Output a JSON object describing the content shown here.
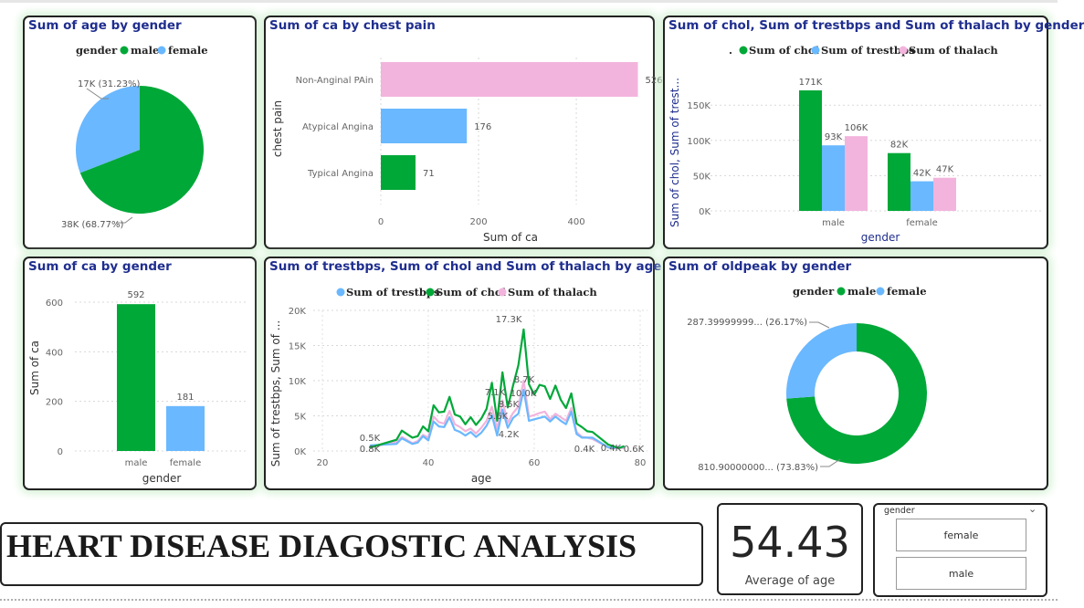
{
  "dashboard_title": "HEART DISEASE DIAGOSTIC ANALYSIS",
  "kpi": {
    "value": "54.43",
    "label": "Average of age"
  },
  "slicer": {
    "title": "gender",
    "options": [
      "female",
      "male"
    ]
  },
  "colors": {
    "male": "#00a838",
    "female": "#6ab8ff",
    "chol": "#00a838",
    "trestbps": "#6ab8ff",
    "thalach": "#f2b4dc",
    "title": "#1f2e8f"
  },
  "chart_data": [
    {
      "id": "age_by_gender",
      "type": "pie",
      "title": "Sum of age by gender",
      "legend_title": "gender",
      "labels": [
        "male",
        "female"
      ],
      "values": [
        38,
        17
      ],
      "data_labels": [
        "38K (68.77%)",
        "17K (31.23%)"
      ]
    },
    {
      "id": "ca_by_chest_pain",
      "type": "bar",
      "orientation": "horizontal",
      "title": "Sum of ca by chest pain",
      "categories": [
        "Non-Anginal PAin",
        "Atypical Angina",
        "Typical Angina"
      ],
      "values": [
        526,
        176,
        71
      ],
      "xlabel": "Sum of ca",
      "ylabel": "chest pain",
      "xlim": [
        0,
        540
      ],
      "xticks": [
        0,
        200,
        400
      ]
    },
    {
      "id": "chol_trestbps_thalach_by_gender",
      "type": "bar",
      "title": "Sum of chol, Sum of trestbps and Sum of thalach by gender",
      "legend_prefix": ".",
      "categories": [
        "male",
        "female"
      ],
      "series": [
        {
          "name": "Sum of chol",
          "values": [
            171,
            82
          ],
          "labels": [
            "171K",
            "82K"
          ]
        },
        {
          "name": "Sum of trestbps",
          "values": [
            93,
            42
          ],
          "labels": [
            "93K",
            "42K"
          ]
        },
        {
          "name": "Sum of thalach",
          "values": [
            106,
            47
          ],
          "labels": [
            "106K",
            "47K"
          ]
        }
      ],
      "xlabel": "gender",
      "ylabel": "Sum of chol, Sum of trest...",
      "yticks": [
        "0K",
        "50K",
        "100K",
        "150K"
      ],
      "ylim": [
        0,
        180
      ]
    },
    {
      "id": "ca_by_gender",
      "type": "bar",
      "title": "Sum of ca by gender",
      "categories": [
        "male",
        "female"
      ],
      "values": [
        592,
        181
      ],
      "xlabel": "gender",
      "ylabel": "Sum of ca",
      "yticks": [
        0,
        200,
        400,
        600
      ],
      "ylim": [
        0,
        620
      ]
    },
    {
      "id": "by_age",
      "type": "line",
      "title": "Sum of trestbps, Sum of chol and Sum of thalach by age",
      "xlabel": "age",
      "ylabel": "Sum of trestbps, Sum of ...",
      "xticks": [
        20,
        40,
        60,
        80
      ],
      "yticks": [
        "0K",
        "5K",
        "10K",
        "15K",
        "20K"
      ],
      "xlim": [
        18,
        80
      ],
      "ylim": [
        0,
        20
      ],
      "x": [
        29,
        34,
        35,
        37,
        38,
        39,
        40,
        41,
        42,
        43,
        44,
        45,
        46,
        47,
        48,
        49,
        50,
        51,
        52,
        53,
        54,
        55,
        56,
        57,
        58,
        59,
        60,
        61,
        62,
        63,
        64,
        65,
        66,
        67,
        68,
        69,
        70,
        71,
        74,
        76,
        77
      ],
      "series": [
        {
          "name": "Sum of trestbps",
          "values": [
            0.8,
            1.0,
            1.8,
            1.0,
            1.2,
            2.1,
            1.5,
            4.2,
            3.5,
            3.4,
            4.8,
            3.0,
            2.7,
            2.2,
            2.7,
            2.0,
            2.6,
            3.6,
            5.1,
            2.2,
            5.9,
            3.3,
            4.7,
            5.3,
            8.7,
            4.3,
            4.5,
            4.7,
            4.9,
            4.2,
            4.9,
            4.3,
            3.8,
            5.6,
            2.4,
            1.9,
            1.9,
            1.9,
            0.5,
            0.5,
            0.6
          ]
        },
        {
          "name": "Sum of chol",
          "values": [
            0.5,
            1.6,
            2.9,
            1.9,
            2.1,
            3.5,
            2.8,
            6.5,
            5.5,
            5.6,
            7.7,
            5.2,
            4.9,
            3.8,
            4.8,
            3.7,
            4.6,
            6.0,
            9.7,
            4.3,
            11.2,
            6.2,
            9.3,
            12.2,
            17.3,
            9.5,
            8.0,
            9.4,
            9.2,
            7.4,
            9.3,
            7.3,
            6.1,
            8.2,
            3.9,
            3.4,
            2.8,
            2.7,
            0.9,
            0.4,
            0.7
          ]
        },
        {
          "name": "Sum of thalach",
          "values": [
            0.5,
            1.3,
            2.0,
            1.1,
            1.4,
            2.3,
            1.9,
            4.9,
            4.1,
            3.9,
            5.7,
            3.8,
            3.4,
            2.8,
            3.2,
            2.5,
            3.3,
            4.3,
            6.3,
            3.1,
            7.2,
            4.0,
            5.4,
            6.3,
            10.0,
            4.9,
            5.1,
            5.4,
            5.6,
            4.5,
            5.3,
            4.8,
            4.3,
            6.1,
            2.7,
            2.0,
            1.9,
            1.7,
            0.5,
            0.4,
            0.4
          ]
        }
      ],
      "annotations": [
        "17.3K",
        "8.7K",
        "10.0K",
        "7.1K",
        "8.5K",
        "5.6K",
        "4.2K",
        "0.5K",
        "0.8K",
        "0.4K",
        "0.4K",
        "0.6K"
      ]
    },
    {
      "id": "oldpeak_by_gender",
      "type": "pie",
      "donut": true,
      "title": "Sum of oldpeak by gender",
      "legend_title": "gender",
      "labels": [
        "male",
        "female"
      ],
      "values": [
        810.9,
        287.4
      ],
      "data_labels": [
        "810.90000000... (73.83%)",
        "287.39999999... (26.17%)"
      ]
    }
  ]
}
